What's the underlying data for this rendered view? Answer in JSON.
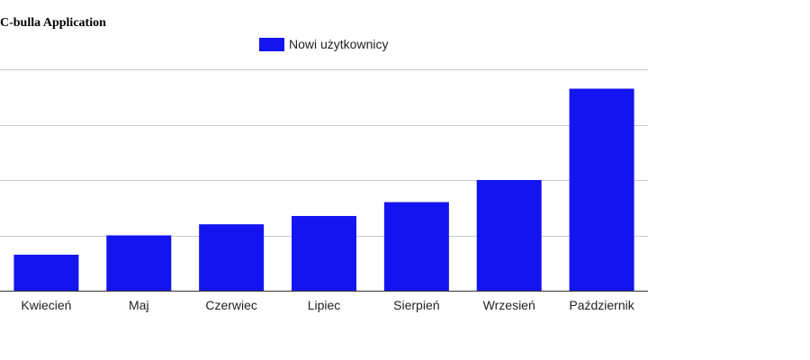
{
  "chart_data": {
    "type": "bar",
    "title": "C-bulla Application",
    "xlabel": "",
    "ylabel": "",
    "categories": [
      "Kwiecień",
      "Maj",
      "Czerwiec",
      "Lipiec",
      "Sierpień",
      "Wrzesień",
      "Październik"
    ],
    "series": [
      {
        "name": "Nowi użytkownicy",
        "values": [
          13,
          20,
          24,
          27,
          32,
          40,
          73
        ]
      }
    ],
    "ylim": [
      0,
      80
    ],
    "grid": true,
    "legend_position": "top-center",
    "bar_color": "#1414f0"
  }
}
